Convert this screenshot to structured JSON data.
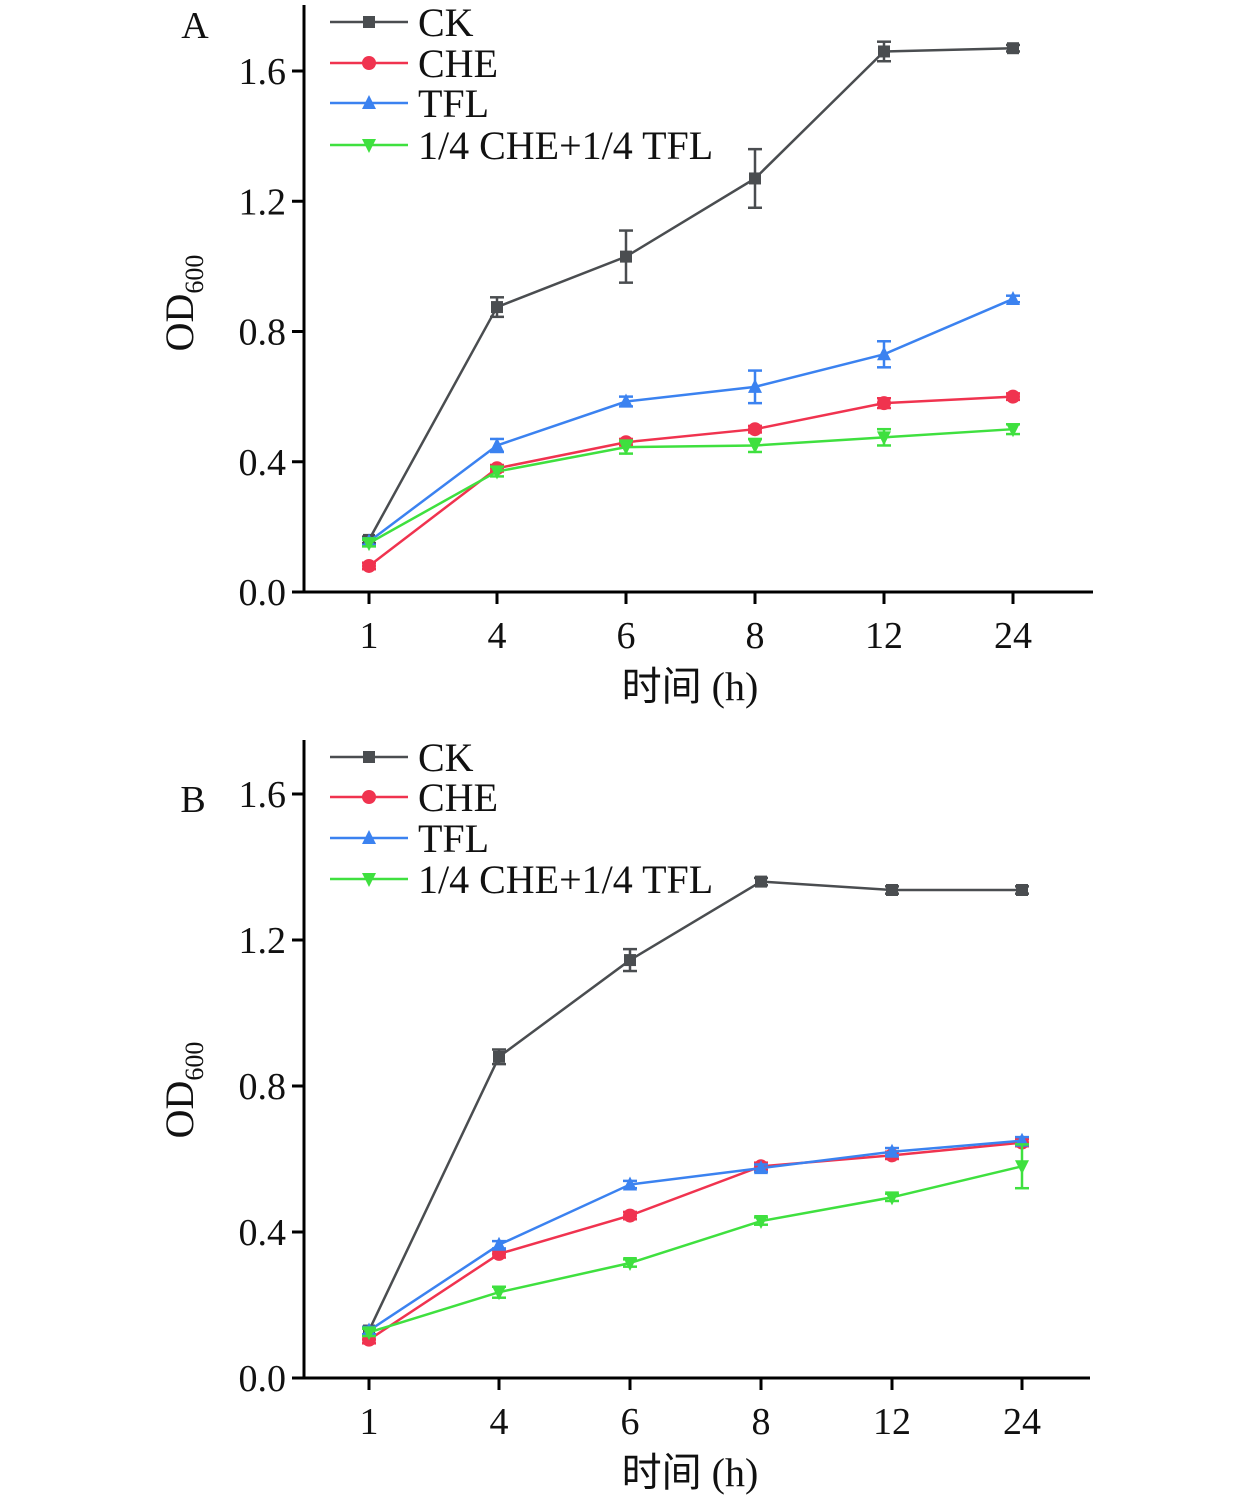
{
  "chart_data": [
    {
      "type": "line",
      "panel_label": "A",
      "xlabel": "时间 (h)",
      "ylabel": {
        "main": "OD",
        "sub": "600"
      },
      "categories": [
        "1",
        "4",
        "6",
        "8",
        "12",
        "24"
      ],
      "ylim": [
        0,
        1.6
      ],
      "yticks": [
        "0.0",
        "0.4",
        "0.8",
        "1.2",
        "1.6"
      ],
      "ytick_values": [
        0,
        0.4,
        0.8,
        1.2,
        1.6
      ],
      "grid": false,
      "legend_position": "top-left",
      "series": [
        {
          "name": "CK",
          "color": "#4a4d50",
          "marker": "square",
          "values": [
            0.16,
            0.875,
            1.03,
            1.27,
            1.66,
            1.67
          ],
          "errors": [
            0.01,
            0.03,
            0.08,
            0.09,
            0.03,
            0.01
          ]
        },
        {
          "name": "CHE",
          "color": "#f0334f",
          "marker": "circle",
          "values": [
            0.08,
            0.38,
            0.46,
            0.5,
            0.58,
            0.6
          ],
          "errors": [
            0.01,
            0.01,
            0.01,
            0.01,
            0.015,
            0.01
          ]
        },
        {
          "name": "TFL",
          "color": "#3b82f0",
          "marker": "triangle-up",
          "values": [
            0.155,
            0.45,
            0.585,
            0.63,
            0.73,
            0.9
          ],
          "errors": [
            0.01,
            0.02,
            0.015,
            0.05,
            0.04,
            0.01
          ]
        },
        {
          "name": "1/4 CHE+1/4 TFL",
          "color": "#3fe03f",
          "marker": "triangle-down",
          "values": [
            0.15,
            0.37,
            0.445,
            0.45,
            0.475,
            0.5
          ],
          "errors": [
            0.01,
            0.015,
            0.02,
            0.02,
            0.025,
            0.015
          ]
        }
      ]
    },
    {
      "type": "line",
      "panel_label": "B",
      "xlabel": "时间 (h)",
      "ylabel": {
        "main": "OD",
        "sub": "600"
      },
      "categories": [
        "1",
        "4",
        "6",
        "8",
        "12",
        "24"
      ],
      "ylim": [
        0,
        1.6
      ],
      "yticks": [
        "0.0",
        "0.4",
        "0.8",
        "1.2",
        "1.6"
      ],
      "ytick_values": [
        0,
        0.4,
        0.8,
        1.2,
        1.6
      ],
      "grid": false,
      "legend_position": "top-left",
      "series": [
        {
          "name": "CK",
          "color": "#4a4d50",
          "marker": "square",
          "values": [
            0.13,
            0.88,
            1.145,
            1.36,
            1.337,
            1.337
          ],
          "errors": [
            0.01,
            0.02,
            0.03,
            0.01,
            0.01,
            0.01
          ]
        },
        {
          "name": "CHE",
          "color": "#f0334f",
          "marker": "circle",
          "values": [
            0.105,
            0.34,
            0.445,
            0.58,
            0.61,
            0.645
          ],
          "errors": [
            0.01,
            0.01,
            0.01,
            0.01,
            0.01,
            0.01
          ]
        },
        {
          "name": "TFL",
          "color": "#3b82f0",
          "marker": "triangle-up",
          "values": [
            0.13,
            0.365,
            0.53,
            0.575,
            0.62,
            0.65
          ],
          "errors": [
            0.01,
            0.01,
            0.01,
            0.01,
            0.01,
            0.01
          ]
        },
        {
          "name": "1/4 CHE+1/4 TFL",
          "color": "#3fe03f",
          "marker": "triangle-down",
          "values": [
            0.125,
            0.235,
            0.315,
            0.43,
            0.495,
            0.58
          ],
          "errors": [
            0.01,
            0.015,
            0.01,
            0.01,
            0.01,
            0.06
          ]
        }
      ]
    }
  ]
}
